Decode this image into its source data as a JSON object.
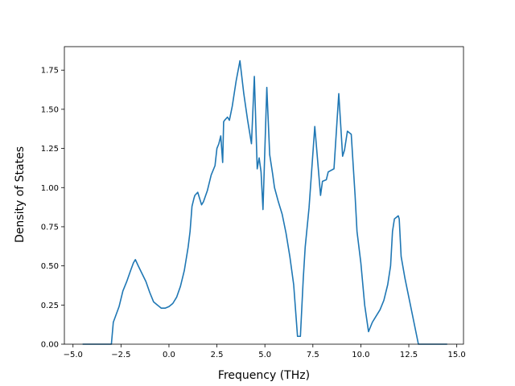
{
  "chart_data": {
    "type": "line",
    "title": "",
    "xlabel": "Frequency (THz)",
    "ylabel": "Density of States",
    "xlim": [
      -5.45,
      15.35
    ],
    "ylim": [
      0,
      1.9
    ],
    "xticks": [
      -5.0,
      -2.5,
      0.0,
      2.5,
      5.0,
      7.5,
      10.0,
      12.5,
      15.0
    ],
    "xtick_labels": [
      "−5.0",
      "−2.5",
      "0.0",
      "2.5",
      "5.0",
      "7.5",
      "10.0",
      "12.5",
      "15.0"
    ],
    "yticks": [
      0.0,
      0.25,
      0.5,
      0.75,
      1.0,
      1.25,
      1.5,
      1.75
    ],
    "ytick_labels": [
      "0.00",
      "0.25",
      "0.50",
      "0.75",
      "1.00",
      "1.25",
      "1.50",
      "1.75"
    ],
    "grid": false,
    "series": [
      {
        "color": "#1f77b4",
        "x": [
          -4.5,
          -3.0,
          -2.9,
          -2.6,
          -2.4,
          -2.2,
          -2.0,
          -1.85,
          -1.75,
          -1.6,
          -1.4,
          -1.2,
          -1.0,
          -0.8,
          -0.6,
          -0.4,
          -0.2,
          0.0,
          0.2,
          0.4,
          0.6,
          0.8,
          1.0,
          1.1,
          1.2,
          1.3,
          1.35,
          1.5,
          1.7,
          1.8,
          2.0,
          2.2,
          2.4,
          2.5,
          2.6,
          2.7,
          2.8,
          2.85,
          2.9,
          3.05,
          3.15,
          3.3,
          3.5,
          3.7,
          3.9,
          4.1,
          4.3,
          4.45,
          4.6,
          4.7,
          4.8,
          4.9,
          5.1,
          5.25,
          5.4,
          5.5,
          5.7,
          5.9,
          6.1,
          6.3,
          6.5,
          6.7,
          6.85,
          7.0,
          7.1,
          7.3,
          7.6,
          7.9,
          8.0,
          8.2,
          8.3,
          8.6,
          8.85,
          9.05,
          9.15,
          9.3,
          9.5,
          9.7,
          9.8,
          10.0,
          10.2,
          10.4,
          10.6,
          10.8,
          11.0,
          11.2,
          11.4,
          11.55,
          11.65,
          11.75,
          11.95,
          12.0,
          12.1,
          12.3,
          12.5,
          12.65,
          12.8,
          13.0,
          14.5
        ],
        "y": [
          0.0,
          0.0,
          0.14,
          0.24,
          0.34,
          0.4,
          0.47,
          0.52,
          0.54,
          0.5,
          0.45,
          0.4,
          0.33,
          0.27,
          0.25,
          0.23,
          0.23,
          0.24,
          0.26,
          0.3,
          0.37,
          0.47,
          0.62,
          0.72,
          0.88,
          0.93,
          0.95,
          0.97,
          0.89,
          0.91,
          0.98,
          1.08,
          1.14,
          1.25,
          1.28,
          1.33,
          1.16,
          1.42,
          1.43,
          1.45,
          1.43,
          1.52,
          1.68,
          1.81,
          1.6,
          1.43,
          1.28,
          1.71,
          1.12,
          1.19,
          1.1,
          0.86,
          1.64,
          1.21,
          1.09,
          1.0,
          0.91,
          0.83,
          0.71,
          0.56,
          0.38,
          0.05,
          0.05,
          0.42,
          0.62,
          0.87,
          1.39,
          0.95,
          1.04,
          1.05,
          1.1,
          1.12,
          1.6,
          1.2,
          1.24,
          1.36,
          1.34,
          0.95,
          0.72,
          0.52,
          0.25,
          0.08,
          0.14,
          0.18,
          0.22,
          0.28,
          0.38,
          0.5,
          0.72,
          0.8,
          0.82,
          0.8,
          0.56,
          0.42,
          0.3,
          0.21,
          0.12,
          0.0,
          0.0
        ]
      }
    ]
  }
}
